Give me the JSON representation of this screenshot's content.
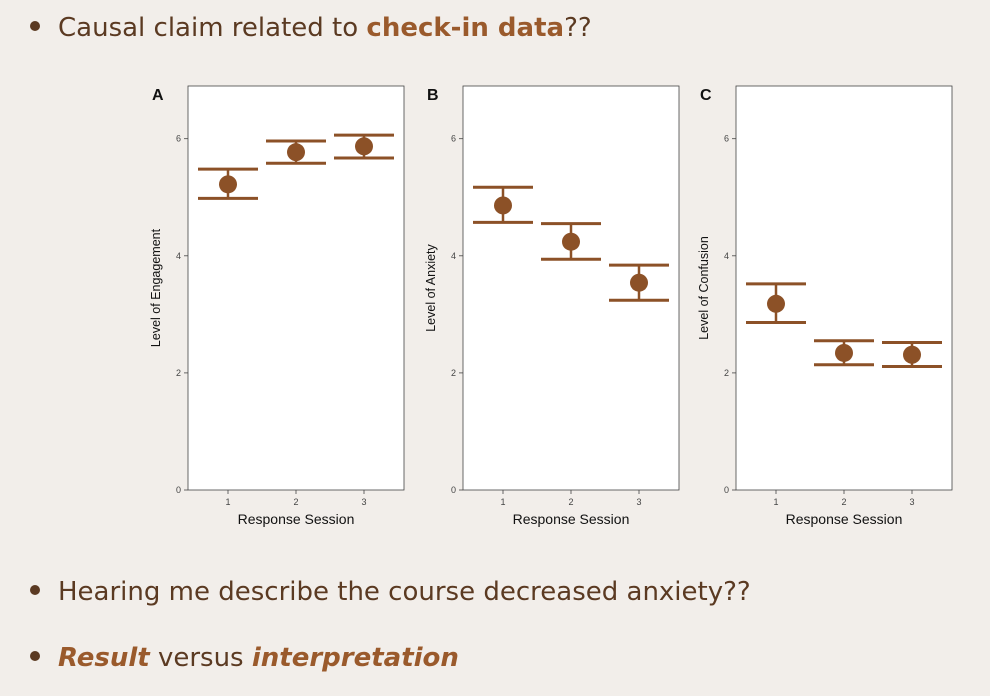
{
  "bullets": {
    "b1": {
      "pre": "Causal claim related to ",
      "em": "check-in data",
      "post": "??"
    },
    "b2": {
      "text": "Hearing me describe the course decreased anxiety??"
    },
    "b3": {
      "em1": "Result",
      "mid": " versus ",
      "em2": "interpretation"
    }
  },
  "colors": {
    "accent": "#8c5127",
    "text": "#5b3a22",
    "background": "#f2eeea"
  },
  "chart_data": [
    {
      "panel": "A",
      "type": "scatter",
      "xlabel": "Response Session",
      "ylabel": "Level of Engagement",
      "categories": [
        "1",
        "2",
        "3"
      ],
      "ylim": [
        0,
        6.9
      ],
      "yticks": [
        0,
        2,
        4,
        6
      ],
      "means": [
        5.22,
        5.77,
        5.87
      ],
      "ci_low": [
        4.98,
        5.58,
        5.67
      ],
      "ci_high": [
        5.48,
        5.96,
        6.06
      ]
    },
    {
      "panel": "B",
      "type": "scatter",
      "xlabel": "Response Session",
      "ylabel": "Level of Anxiety",
      "categories": [
        "1",
        "2",
        "3"
      ],
      "ylim": [
        0,
        6.9
      ],
      "yticks": [
        0,
        2,
        4,
        6
      ],
      "means": [
        4.86,
        4.24,
        3.54
      ],
      "ci_low": [
        4.57,
        3.94,
        3.24
      ],
      "ci_high": [
        5.17,
        4.55,
        3.84
      ]
    },
    {
      "panel": "C",
      "type": "scatter",
      "xlabel": "Response Session",
      "ylabel": "Level of Confusion",
      "categories": [
        "1",
        "2",
        "3"
      ],
      "ylim": [
        0,
        6.9
      ],
      "yticks": [
        0,
        2,
        4,
        6
      ],
      "means": [
        3.18,
        2.34,
        2.31
      ],
      "ci_low": [
        2.86,
        2.14,
        2.11
      ],
      "ci_high": [
        3.52,
        2.55,
        2.52
      ]
    }
  ]
}
